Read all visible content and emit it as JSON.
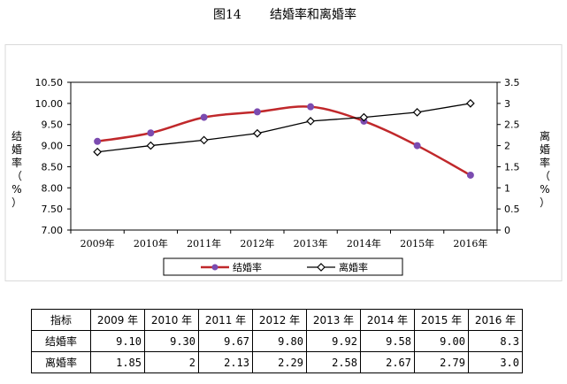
{
  "figure": {
    "number": "图14",
    "title": "结婚率和离婚率"
  },
  "chart_data": {
    "type": "line",
    "categories": [
      "2009年",
      "2010年",
      "2011年",
      "2012年",
      "2013年",
      "2014年",
      "2015年",
      "2016年"
    ],
    "series": [
      {
        "name": "结婚率",
        "axis": "left",
        "color": "#c0282b",
        "marker_color": "#7b4bb0",
        "marker": "circle",
        "values": [
          9.1,
          9.3,
          9.67,
          9.8,
          9.92,
          9.58,
          9.0,
          8.3
        ]
      },
      {
        "name": "离婚率",
        "axis": "right",
        "color": "#000000",
        "marker": "diamond",
        "values": [
          1.85,
          2.0,
          2.13,
          2.29,
          2.58,
          2.67,
          2.79,
          3.0
        ]
      }
    ],
    "y_left": {
      "label": "结婚率（%）",
      "ylim": [
        7.0,
        10.5
      ],
      "ticks": [
        "7.00",
        "7.50",
        "8.00",
        "8.50",
        "9.00",
        "9.50",
        "10.00",
        "10.50"
      ]
    },
    "y_right": {
      "label": "离婚率（%）",
      "ylim": [
        0,
        3.5
      ],
      "ticks": [
        "0",
        "0.5",
        "1",
        "1.5",
        "2",
        "2.5",
        "3",
        "3.5"
      ]
    },
    "grid": false,
    "legend": "bottom"
  },
  "table": {
    "header": "指标",
    "years": [
      "2009 年",
      "2010 年",
      "2011 年",
      "2012 年",
      "2013 年",
      "2014 年",
      "2015 年",
      "2016 年"
    ],
    "rows": [
      {
        "label": "结婚率",
        "values": [
          "9.10",
          "9.30",
          "9.67",
          "9.80",
          "9.92",
          "9.58",
          "9.00",
          "8.3"
        ]
      },
      {
        "label": "离婚率",
        "values": [
          "1.85",
          "2",
          "2.13",
          "2.29",
          "2.58",
          "2.67",
          "2.79",
          "3.0"
        ]
      }
    ]
  }
}
